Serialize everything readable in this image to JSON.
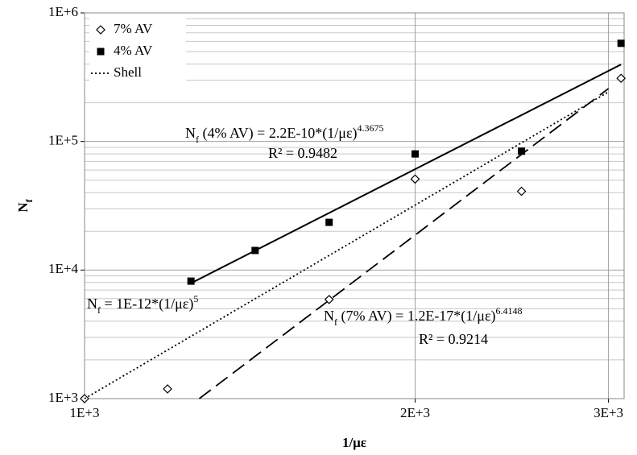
{
  "chart_data": {
    "type": "scatter",
    "x_label": [
      {
        "text": "1/με"
      }
    ],
    "y_label": [
      {
        "text": "N"
      },
      {
        "text": "f",
        "shift": "sub"
      }
    ],
    "xlim": [
      1000,
      3100
    ],
    "ylim": [
      1000,
      1000000
    ],
    "x_log": true,
    "y_log": true,
    "grid": true,
    "minor_grid_y": true,
    "xticks": [
      {
        "value": 1000,
        "label": "1E+3"
      },
      {
        "value": 2000,
        "label": "2E+3"
      },
      {
        "value": 3000,
        "label": "3E+3"
      }
    ],
    "yticks": [
      {
        "value": 1000,
        "label": "1E+3"
      },
      {
        "value": 10000,
        "label": "1E+4"
      },
      {
        "value": 100000,
        "label": "1E+5"
      },
      {
        "value": 1000000,
        "label": "1E+6"
      }
    ],
    "legend": "top-left",
    "series": [
      {
        "name": "7% AV",
        "color": "#000000",
        "marker": "diamond",
        "x": [
          1190,
          1000,
          1670,
          2000,
          2500,
          3080
        ],
        "values": [
          1190,
          1000,
          5900,
          51000,
          41000,
          310000
        ]
      },
      {
        "name": "4% AV",
        "color": "#000000",
        "marker": "square",
        "x": [
          1250,
          1430,
          1670,
          2000,
          2500,
          3080
        ],
        "values": [
          8200,
          14200,
          23500,
          80000,
          84000,
          580000
        ]
      },
      {
        "name": "Shell",
        "color": "#000000",
        "dash": "dotted",
        "x": [
          1000,
          3000
        ],
        "values": [
          1000,
          243000
        ]
      },
      {
        "color": "#000000",
        "dash": "solid",
        "x": [
          1250,
          3080
        ],
        "values": [
          7900,
          397000
        ]
      },
      {
        "color": "#000000",
        "dash": "dashed",
        "x": [
          1272,
          3000
        ],
        "values": [
          1000,
          258000
        ]
      }
    ],
    "annotations": [
      [
        {
          "text": "N"
        },
        {
          "text": "f",
          "shift": "sub"
        },
        {
          "text": " (4% AV) = 2.2E-10*(1/με)"
        },
        {
          "text": "4.3675",
          "shift": "super"
        }
      ],
      [
        {
          "text": "R² = 0.9482"
        }
      ],
      [
        {
          "text": "N"
        },
        {
          "text": "f",
          "shift": "sub"
        },
        {
          "text": " = 1E-12*(1/με)"
        },
        {
          "text": "5",
          "shift": "super"
        }
      ],
      [
        {
          "text": "N"
        },
        {
          "text": "f",
          "shift": "sub"
        },
        {
          "text": " (7% AV) = 1.2E-17*(1/με)"
        },
        {
          "text": "6.4148",
          "shift": "super"
        }
      ],
      [
        {
          "text": "R² = 0.9214"
        }
      ]
    ]
  }
}
